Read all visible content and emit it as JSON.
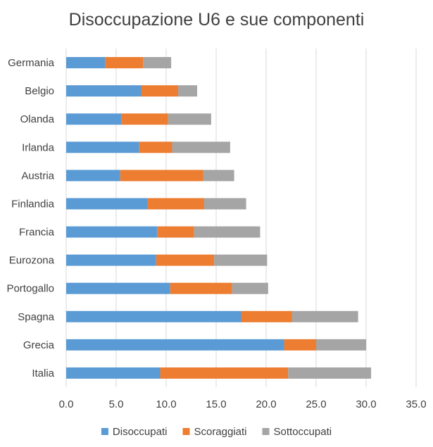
{
  "chart_data": {
    "type": "bar",
    "orientation": "horizontal",
    "stacked": true,
    "title": "Disoccupazione U6 e sue componenti",
    "categories": [
      "Germania",
      "Belgio",
      "Olanda",
      "Irlanda",
      "Austria",
      "Finlandia",
      "Francia",
      "Eurozona",
      "Portogallo",
      "Spagna",
      "Grecia",
      "Italia"
    ],
    "series": [
      {
        "name": "Disoccupati",
        "color": "#5b9bd5",
        "values": [
          3.9,
          7.5,
          5.5,
          7.3,
          5.4,
          8.1,
          9.1,
          9.0,
          10.4,
          17.5,
          21.8,
          9.4
        ]
      },
      {
        "name": "Scoraggiati",
        "color": "#ed7d31",
        "values": [
          3.8,
          3.7,
          4.7,
          3.3,
          8.3,
          5.7,
          3.7,
          5.8,
          6.2,
          5.1,
          3.2,
          12.8
        ]
      },
      {
        "name": "Sottoccupati",
        "color": "#a5a5a5",
        "values": [
          2.8,
          1.9,
          4.3,
          5.8,
          3.1,
          4.2,
          6.6,
          5.3,
          3.6,
          6.6,
          5.0,
          8.3
        ]
      }
    ],
    "xlim": [
      0,
      35
    ],
    "x_ticks": [
      "0.0",
      "5.0",
      "10.0",
      "15.0",
      "20.0",
      "25.0",
      "30.0",
      "35.0"
    ],
    "grid": true,
    "legend_position": "bottom"
  }
}
